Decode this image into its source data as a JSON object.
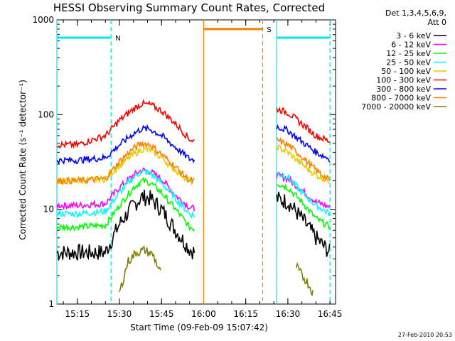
{
  "chart_data": {
    "type": "line",
    "title": "HESSI Observing Summary Count Rates, Corrected",
    "xlabel": "Start Time (09-Feb-09 15:07:42)",
    "ylabel": "Corrected Count Rate (s⁻¹ detector⁻¹)",
    "yscale": "log",
    "ylim": [
      1,
      1000
    ],
    "xlim": [
      "15:07:42",
      "16:47:00"
    ],
    "x_ticks": [
      "15:15",
      "15:30",
      "15:45",
      "16:00",
      "16:15",
      "16:30",
      "16:45"
    ],
    "y_ticks": [
      "1",
      "10",
      "100",
      "1000"
    ],
    "legend_header": [
      "Det 1,3,4,5,6,9,",
      "Att 0"
    ],
    "legend_position": "right",
    "footer_date": "27-Feb-2010 20:53",
    "markers": [
      {
        "label": "N",
        "type": "night",
        "start": "15:07:42",
        "end": "15:27",
        "level": 650,
        "color": "#00e5ee"
      },
      {
        "label": "S",
        "type": "saa",
        "start": "16:00",
        "end": "16:21",
        "level": 800,
        "color": "#ff7f00"
      },
      {
        "label": "",
        "type": "night",
        "start": "16:26",
        "end": "16:45",
        "level": 650,
        "color": "#00e5ee"
      }
    ],
    "vertical_lines": [
      {
        "time": "15:07:42",
        "style": "solid",
        "color": "#00e5ee"
      },
      {
        "time": "15:27",
        "style": "dashed",
        "color": "#00e5ee"
      },
      {
        "time": "16:00",
        "style": "solid",
        "color": "#ff7f00"
      },
      {
        "time": "16:21",
        "style": "dashed",
        "color": "#ff7f00"
      },
      {
        "time": "16:26",
        "style": "solid",
        "color": "#00e5ee"
      },
      {
        "time": "16:45",
        "style": "dashed",
        "color": "#00e5ee"
      }
    ],
    "series": [
      {
        "name": "3 - 6 keV",
        "color": "#000000",
        "segments": [
          {
            "x": [
              "15:07:42",
              "15:15",
              "15:25",
              "15:30",
              "15:35",
              "15:38",
              "15:41",
              "15:45",
              "15:50",
              "15:55",
              "15:57"
            ],
            "y": [
              3.5,
              3.5,
              3.5,
              7,
              11,
              13.5,
              13,
              10,
              6,
              3.8,
              3.5
            ]
          },
          {
            "x": [
              "16:26",
              "16:30",
              "16:35",
              "16:40",
              "16:45"
            ],
            "y": [
              13,
              12,
              8,
              5,
              3.5
            ]
          }
        ]
      },
      {
        "name": "6 - 12 keV",
        "color": "#ff00ff",
        "segments": [
          {
            "x": [
              "15:07:42",
              "15:15",
              "15:25",
              "15:30",
              "15:35",
              "15:38",
              "15:41",
              "15:45",
              "15:50",
              "15:55",
              "15:57"
            ],
            "y": [
              11,
              11,
              11.5,
              17,
              23,
              26,
              25,
              21,
              14,
              10.5,
              10
            ]
          },
          {
            "x": [
              "16:26",
              "16:30",
              "16:35",
              "16:40",
              "16:45"
            ],
            "y": [
              23,
              21,
              16,
              12,
              10.5
            ]
          }
        ]
      },
      {
        "name": "12 - 25 keV",
        "color": "#00ff00",
        "segments": [
          {
            "x": [
              "15:07:42",
              "15:15",
              "15:25",
              "15:30",
              "15:35",
              "15:38",
              "15:41",
              "15:45",
              "15:50",
              "15:55",
              "15:57"
            ],
            "y": [
              6.5,
              6.5,
              6.8,
              11,
              17,
              20,
              19,
              15,
              10,
              6.5,
              6.2
            ]
          },
          {
            "x": [
              "16:26",
              "16:30",
              "16:35",
              "16:40",
              "16:45"
            ],
            "y": [
              19,
              17,
              12,
              8,
              6.5
            ]
          }
        ]
      },
      {
        "name": "25 - 50 keV",
        "color": "#00ffff",
        "segments": [
          {
            "x": [
              "15:07:42",
              "15:15",
              "15:25",
              "15:30",
              "15:35",
              "15:38",
              "15:41",
              "15:45",
              "15:50",
              "15:55",
              "15:57"
            ],
            "y": [
              9,
              9,
              9.5,
              15,
              22,
              25,
              24,
              19,
              13,
              9,
              8.5
            ]
          },
          {
            "x": [
              "16:26",
              "16:30",
              "16:35",
              "16:40",
              "16:45"
            ],
            "y": [
              24,
              22,
              15,
              11,
              9
            ]
          }
        ]
      },
      {
        "name": "50 - 100 keV",
        "color": "#e5cc00",
        "segments": [
          {
            "x": [
              "15:07:42",
              "15:15",
              "15:25",
              "15:30",
              "15:35",
              "15:38",
              "15:41",
              "15:45",
              "15:50",
              "15:55",
              "15:57"
            ],
            "y": [
              20,
              20,
              21,
              29,
              38,
              43,
              42,
              35,
              26,
              20,
              19.5
            ]
          },
          {
            "x": [
              "16:26",
              "16:30",
              "16:35",
              "16:40",
              "16:45"
            ],
            "y": [
              46,
              40,
              30,
              23,
              20
            ]
          }
        ]
      },
      {
        "name": "100 - 300 keV",
        "color": "#ff0000",
        "segments": [
          {
            "x": [
              "15:07:42",
              "15:15",
              "15:25",
              "15:30",
              "15:35",
              "15:38",
              "15:41",
              "15:45",
              "15:50",
              "15:55",
              "15:57"
            ],
            "y": [
              48,
              48,
              60,
              87,
              115,
              130,
              127,
              110,
              80,
              55,
              52
            ]
          },
          {
            "x": [
              "16:26",
              "16:30",
              "16:35",
              "16:40",
              "16:45"
            ],
            "y": [
              115,
              105,
              80,
              60,
              52
            ]
          }
        ]
      },
      {
        "name": "300 - 800 keV",
        "color": "#0000ff",
        "segments": [
          {
            "x": [
              "15:07:42",
              "15:15",
              "15:25",
              "15:30",
              "15:35",
              "15:38",
              "15:41",
              "15:45",
              "15:50",
              "15:55",
              "15:57"
            ],
            "y": [
              33,
              33,
              35,
              48,
              63,
              71,
              70,
              60,
              45,
              34,
              33
            ]
          },
          {
            "x": [
              "16:26",
              "16:30",
              "16:35",
              "16:40",
              "16:45"
            ],
            "y": [
              75,
              68,
              52,
              40,
              34
            ]
          }
        ]
      },
      {
        "name": "800 - 7000 keV",
        "color": "#ff7f00",
        "segments": [
          {
            "x": [
              "15:07:42",
              "15:15",
              "15:25",
              "15:30",
              "15:35",
              "15:38",
              "15:41",
              "15:45",
              "15:50",
              "15:55",
              "15:57"
            ],
            "y": [
              20,
              20,
              21,
              32,
              44,
              50,
              48,
              38,
              28,
              20,
              20
            ]
          },
          {
            "x": [
              "16:26",
              "16:30",
              "16:35",
              "16:40",
              "16:45"
            ],
            "y": [
              54,
              48,
              36,
              26,
              20
            ]
          }
        ]
      },
      {
        "name": "7000 - 20000 keV",
        "color": "#808000",
        "segments": [
          {
            "x": [
              "15:30",
              "15:33",
              "15:36",
              "15:39",
              "15:42",
              "15:45"
            ],
            "y": [
              1.3,
              2.8,
              3.5,
              3.7,
              3.3,
              2
            ]
          },
          {
            "x": [
              "16:33",
              "16:35",
              "16:37",
              "16:39"
            ],
            "y": [
              2.5,
              2,
              1.7,
              1.3
            ]
          }
        ]
      }
    ]
  }
}
